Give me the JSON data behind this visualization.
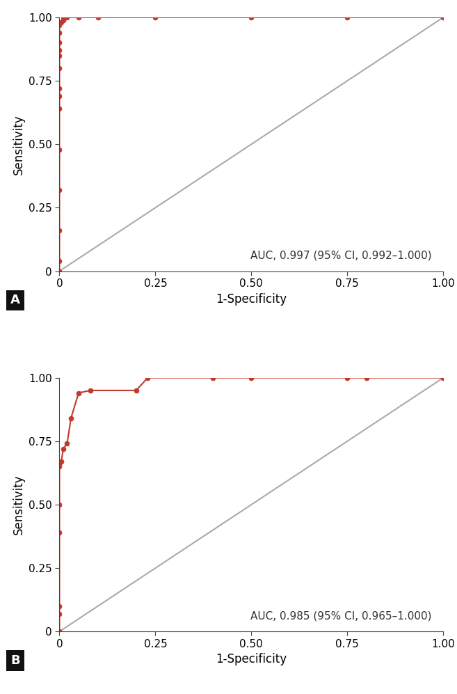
{
  "panel_A": {
    "roc_x": [
      0,
      0,
      0,
      0,
      0,
      0,
      0,
      0,
      0,
      0,
      0,
      0,
      0,
      0,
      0.005,
      0.01,
      0.01,
      0.02,
      0.05,
      0.1,
      0.25,
      0.5,
      0.75,
      1.0
    ],
    "roc_y": [
      0,
      0.04,
      0.16,
      0.32,
      0.48,
      0.64,
      0.69,
      0.72,
      0.8,
      0.85,
      0.87,
      0.9,
      0.94,
      0.97,
      0.98,
      0.99,
      1.0,
      1.0,
      1.0,
      1.0,
      1.0,
      1.0,
      1.0,
      1.0
    ],
    "auc_text": "AUC, 0.997 (95% CI, 0.992–1.000)",
    "label": "A"
  },
  "panel_B": {
    "roc_x": [
      0,
      0,
      0,
      0,
      0,
      0,
      0,
      0.005,
      0.01,
      0.02,
      0.03,
      0.05,
      0.08,
      0.2,
      0.23,
      0.4,
      0.5,
      0.75,
      0.8,
      1.0
    ],
    "roc_y": [
      0,
      0.07,
      0.1,
      0.39,
      0.5,
      0.65,
      0.66,
      0.67,
      0.72,
      0.74,
      0.84,
      0.94,
      0.95,
      0.95,
      1.0,
      1.0,
      1.0,
      1.0,
      1.0,
      1.0
    ],
    "auc_text": "AUC, 0.985 (95% CI, 0.965–1.000)",
    "label": "B"
  },
  "line_color": "#c0392b",
  "diag_color": "#aaaaaa",
  "marker_size": 5,
  "line_width": 1.5,
  "xlabel": "1-Specificity",
  "ylabel": "Sensitivity",
  "xlim": [
    0,
    1.0
  ],
  "ylim": [
    0,
    1.0
  ],
  "xticks": [
    0,
    0.25,
    0.5,
    0.75,
    1.0
  ],
  "yticks": [
    0,
    0.25,
    0.5,
    0.75,
    1.0
  ],
  "xticklabels": [
    "0",
    "0.25",
    "0.50",
    "0.75",
    "1.00"
  ],
  "yticklabels": [
    "0",
    "0.25",
    "0.50",
    "0.75",
    "1.00"
  ],
  "label_fontsize": 12,
  "tick_fontsize": 11,
  "auc_fontsize": 11,
  "panel_label_fontsize": 13,
  "background_color": "#ffffff"
}
